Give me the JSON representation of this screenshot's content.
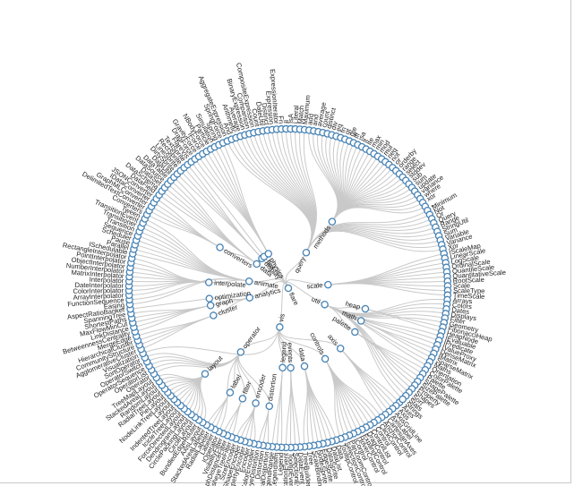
{
  "diagram": {
    "type": "radial-tree",
    "colors": {
      "link": "#c9c9c9",
      "node_stroke": "#4682b4",
      "node_fill": "#ffffff",
      "text": "#222222"
    },
    "tree": {
      "name": "flare",
      "children": [
        {
          "name": "vis",
          "children": [
            {
              "name": "axis",
              "children": [
                {
                  "name": "Axes"
                },
                {
                  "name": "Axis"
                },
                {
                  "name": "AxisGridLine"
                },
                {
                  "name": "AxisLabel"
                },
                {
                  "name": "CartesianAxes"
                }
              ]
            },
            {
              "name": "controls",
              "children": [
                {
                  "name": "AnchorControl"
                },
                {
                  "name": "ClickControl"
                },
                {
                  "name": "Control"
                },
                {
                  "name": "ControlList"
                },
                {
                  "name": "DragControl"
                },
                {
                  "name": "ExpandControl"
                },
                {
                  "name": "HoverControl"
                },
                {
                  "name": "IControl"
                },
                {
                  "name": "PanZoomControl"
                },
                {
                  "name": "SelectionControl"
                },
                {
                  "name": "TooltipControl"
                }
              ]
            },
            {
              "name": "data",
              "children": [
                {
                  "name": "Data"
                },
                {
                  "name": "DataList"
                },
                {
                  "name": "DataSprite"
                },
                {
                  "name": "EdgeSprite"
                },
                {
                  "name": "NodeSprite"
                },
                {
                  "name": "ScaleBinding"
                },
                {
                  "name": "Tree"
                },
                {
                  "name": "TreeBuilder"
                }
              ]
            },
            {
              "name": "events",
              "children": [
                {
                  "name": "DataEvent"
                },
                {
                  "name": "SelectionEvent"
                },
                {
                  "name": "TooltipEvent"
                },
                {
                  "name": "VisualizationEvent"
                }
              ]
            },
            {
              "name": "legend",
              "children": [
                {
                  "name": "Legend"
                },
                {
                  "name": "LegendItem"
                },
                {
                  "name": "LegendRange"
                }
              ]
            },
            {
              "name": "operator",
              "children": [
                {
                  "name": "distortion",
                  "children": [
                    {
                      "name": "BifocalDistortion"
                    },
                    {
                      "name": "Distortion"
                    },
                    {
                      "name": "FisheyeDistortion"
                    }
                  ]
                },
                {
                  "name": "encoder",
                  "children": [
                    {
                      "name": "ColorEncoder"
                    },
                    {
                      "name": "Encoder"
                    },
                    {
                      "name": "PropertyEncoder"
                    },
                    {
                      "name": "ShapeEncoder"
                    },
                    {
                      "name": "SizeEncoder"
                    }
                  ]
                },
                {
                  "name": "filter",
                  "children": [
                    {
                      "name": "FisheyeTreeFilter"
                    },
                    {
                      "name": "GraphDistanceFilter"
                    },
                    {
                      "name": "VisibilityFilter"
                    }
                  ]
                },
                {
                  "name": "IOperator"
                },
                {
                  "name": "label",
                  "children": [
                    {
                      "name": "Labeler"
                    },
                    {
                      "name": "RadialLabeler"
                    },
                    {
                      "name": "StackedAreaLabeler"
                    }
                  ]
                },
                {
                  "name": "layout",
                  "children": [
                    {
                      "name": "AxisLayout"
                    },
                    {
                      "name": "BundledEdgeRouter"
                    },
                    {
                      "name": "CircleLayout"
                    },
                    {
                      "name": "CirclePackingLayout"
                    },
                    {
                      "name": "DendrogramLayout"
                    },
                    {
                      "name": "ForceDirectedLayout"
                    },
                    {
                      "name": "IcicleTreeLayout"
                    },
                    {
                      "name": "IndentedTreeLayout"
                    },
                    {
                      "name": "Layout"
                    },
                    {
                      "name": "NodeLinkTreeLayout"
                    },
                    {
                      "name": "PieLayout"
                    },
                    {
                      "name": "RadialTreeLayout"
                    },
                    {
                      "name": "RandomLayout"
                    },
                    {
                      "name": "StackedAreaLayout"
                    },
                    {
                      "name": "TreeMapLayout"
                    }
                  ]
                },
                {
                  "name": "Operator"
                },
                {
                  "name": "OperatorList"
                },
                {
                  "name": "OperatorSequence"
                },
                {
                  "name": "OperatorSwitch"
                },
                {
                  "name": "SortOperator"
                }
              ]
            },
            {
              "name": "Visualization"
            }
          ]
        },
        {
          "name": "analytics",
          "children": [
            {
              "name": "cluster",
              "children": [
                {
                  "name": "AgglomerativeCluster"
                },
                {
                  "name": "CommunityStructure"
                },
                {
                  "name": "HierarchicalCluster"
                },
                {
                  "name": "MergeEdge"
                }
              ]
            },
            {
              "name": "graph",
              "children": [
                {
                  "name": "BetweennessCentrality"
                },
                {
                  "name": "LinkDistance"
                },
                {
                  "name": "MaxFlowMinCut"
                },
                {
                  "name": "ShortestPaths"
                },
                {
                  "name": "SpanningTree"
                }
              ]
            },
            {
              "name": "optimization",
              "children": [
                {
                  "name": "AspectRatioBanker"
                }
              ]
            }
          ]
        },
        {
          "name": "animate",
          "children": [
            {
              "name": "Easing"
            },
            {
              "name": "FunctionSequence"
            },
            {
              "name": "interpolate",
              "children": [
                {
                  "name": "ArrayInterpolator"
                },
                {
                  "name": "ColorInterpolator"
                },
                {
                  "name": "DateInterpolator"
                },
                {
                  "name": "Interpolator"
                },
                {
                  "name": "MatrixInterpolator"
                },
                {
                  "name": "NumberInterpolator"
                },
                {
                  "name": "ObjectInterpolator"
                },
                {
                  "name": "PointInterpolator"
                },
                {
                  "name": "RectangleInterpolator"
                }
              ]
            },
            {
              "name": "ISchedulable"
            },
            {
              "name": "Parallel"
            },
            {
              "name": "Pause"
            },
            {
              "name": "Scheduler"
            },
            {
              "name": "Sequence"
            },
            {
              "name": "Transition"
            },
            {
              "name": "Transitioner"
            },
            {
              "name": "TransitionEvent"
            },
            {
              "name": "Tween"
            }
          ]
        },
        {
          "name": "data",
          "children": [
            {
              "name": "converters",
              "children": [
                {
                  "name": "Converters"
                },
                {
                  "name": "DelimitedTextConverter"
                },
                {
                  "name": "GraphMLConverter"
                },
                {
                  "name": "IDataConverter"
                },
                {
                  "name": "JSONConverter"
                }
              ]
            },
            {
              "name": "DataField"
            },
            {
              "name": "DataSchema"
            },
            {
              "name": "DataSet"
            },
            {
              "name": "DataSource"
            },
            {
              "name": "DataTable"
            },
            {
              "name": "DataUtil"
            }
          ]
        },
        {
          "name": "display",
          "children": [
            {
              "name": "DirtySprite"
            },
            {
              "name": "LineSprite"
            },
            {
              "name": "RectSprite"
            },
            {
              "name": "TextSprite"
            }
          ]
        },
        {
          "name": "flex",
          "children": [
            {
              "name": "FlareVis"
            }
          ]
        },
        {
          "name": "physics",
          "children": [
            {
              "name": "DragForce"
            },
            {
              "name": "GravityForce"
            },
            {
              "name": "IForce"
            },
            {
              "name": "NBodyForce"
            },
            {
              "name": "Particle"
            },
            {
              "name": "Simulation"
            },
            {
              "name": "Spring"
            },
            {
              "name": "SpringForce"
            }
          ]
        },
        {
          "name": "query",
          "children": [
            {
              "name": "AggregateExpression"
            },
            {
              "name": "And"
            },
            {
              "name": "Arithmetic"
            },
            {
              "name": "Average"
            },
            {
              "name": "BinaryExpression"
            },
            {
              "name": "Comparison"
            },
            {
              "name": "CompositeExpression"
            },
            {
              "name": "Count"
            },
            {
              "name": "DateUtil"
            },
            {
              "name": "Distinct"
            },
            {
              "name": "Expression"
            },
            {
              "name": "ExpressionIterator"
            },
            {
              "name": "Fn"
            },
            {
              "name": "If"
            },
            {
              "name": "IsA"
            },
            {
              "name": "Literal"
            },
            {
              "name": "Match"
            },
            {
              "name": "Maximum"
            },
            {
              "name": "methods",
              "children": [
                {
                  "name": "add"
                },
                {
                  "name": "and"
                },
                {
                  "name": "average"
                },
                {
                  "name": "count"
                },
                {
                  "name": "distinct"
                },
                {
                  "name": "div"
                },
                {
                  "name": "eq"
                },
                {
                  "name": "fn"
                },
                {
                  "name": "gt"
                },
                {
                  "name": "gte"
                },
                {
                  "name": "iff"
                },
                {
                  "name": "isa"
                },
                {
                  "name": "lt"
                },
                {
                  "name": "lte"
                },
                {
                  "name": "max"
                },
                {
                  "name": "min"
                },
                {
                  "name": "mod"
                },
                {
                  "name": "mul"
                },
                {
                  "name": "neq"
                },
                {
                  "name": "not"
                },
                {
                  "name": "or"
                },
                {
                  "name": "orderby"
                },
                {
                  "name": "range"
                },
                {
                  "name": "select"
                },
                {
                  "name": "stddev"
                },
                {
                  "name": "sub"
                },
                {
                  "name": "sum"
                },
                {
                  "name": "update"
                },
                {
                  "name": "variance"
                },
                {
                  "name": "where"
                },
                {
                  "name": "xor"
                },
                {
                  "name": "_"
                }
              ]
            },
            {
              "name": "Minimum"
            },
            {
              "name": "Not"
            },
            {
              "name": "Or"
            },
            {
              "name": "Query"
            },
            {
              "name": "Range"
            },
            {
              "name": "StringUtil"
            },
            {
              "name": "Sum"
            },
            {
              "name": "Variable"
            },
            {
              "name": "Variance"
            },
            {
              "name": "Xor"
            }
          ]
        },
        {
          "name": "scale",
          "children": [
            {
              "name": "IScaleMap"
            },
            {
              "name": "LinearScale"
            },
            {
              "name": "LogScale"
            },
            {
              "name": "OrdinalScale"
            },
            {
              "name": "QuantileScale"
            },
            {
              "name": "QuantitativeScale"
            },
            {
              "name": "RootScale"
            },
            {
              "name": "Scale"
            },
            {
              "name": "ScaleType"
            },
            {
              "name": "TimeScale"
            }
          ]
        },
        {
          "name": "util",
          "children": [
            {
              "name": "Arrays"
            },
            {
              "name": "Colors"
            },
            {
              "name": "Dates"
            },
            {
              "name": "Displays"
            },
            {
              "name": "Filter"
            },
            {
              "name": "Geometry"
            },
            {
              "name": "heap",
              "children": [
                {
                  "name": "FibonacciHeap"
                },
                {
                  "name": "HeapNode"
                }
              ]
            },
            {
              "name": "IEvaluable"
            },
            {
              "name": "IPredicate"
            },
            {
              "name": "IValueProxy"
            },
            {
              "name": "math",
              "children": [
                {
                  "name": "DenseMatrix"
                },
                {
                  "name": "IMatrix"
                },
                {
                  "name": "SparseMatrix"
                }
              ]
            },
            {
              "name": "Maths"
            },
            {
              "name": "Orientation"
            },
            {
              "name": "palette",
              "children": [
                {
                  "name": "ColorPalette"
                },
                {
                  "name": "Palette"
                },
                {
                  "name": "ShapePalette"
                },
                {
                  "name": "SizePalette"
                }
              ]
            },
            {
              "name": "Property"
            },
            {
              "name": "Shapes"
            },
            {
              "name": "Sort"
            },
            {
              "name": "Stats"
            },
            {
              "name": "Strings"
            }
          ]
        }
      ]
    }
  }
}
